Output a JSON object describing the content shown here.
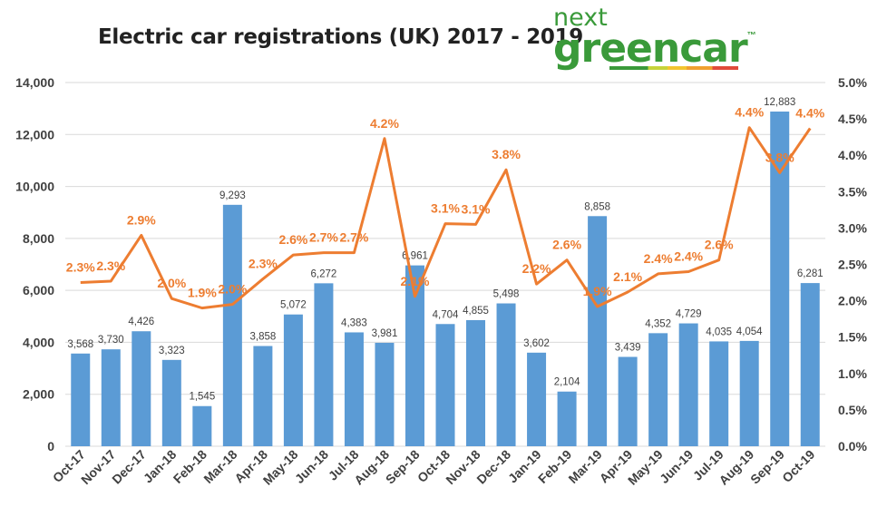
{
  "chart_data": {
    "type": "bar+line",
    "title": "Electric car registrations (UK) 2017 - 2019",
    "categories": [
      "Oct-17",
      "Nov-17",
      "Dec-17",
      "Jan-18",
      "Feb-18",
      "Mar-18",
      "Apr-18",
      "May-18",
      "Jun-18",
      "Jul-18",
      "Aug-18",
      "Sep-18",
      "Oct-18",
      "Nov-18",
      "Dec-18",
      "Jan-19",
      "Feb-19",
      "Mar-19",
      "Apr-19",
      "May-19",
      "Jun-19",
      "Jul-19",
      "Aug-19",
      "Sep-19",
      "Oct-19"
    ],
    "series": [
      {
        "type": "bar",
        "axis": "left",
        "color": "#5b9bd5",
        "values": [
          3568,
          3730,
          4426,
          3323,
          1545,
          9293,
          3858,
          5072,
          6272,
          4383,
          3981,
          6961,
          4704,
          4855,
          5498,
          3602,
          2104,
          8858,
          3439,
          4352,
          4729,
          4035,
          4054,
          12883,
          6281
        ],
        "labels": [
          "3,568",
          "3,730",
          "4,426",
          "3,323",
          "1,545",
          "9,293",
          "3,858",
          "5,072",
          "6,272",
          "4,383",
          "3,981",
          "6,961",
          "4,704",
          "4,855",
          "5,498",
          "3,602",
          "2,104",
          "8,858",
          "3,439",
          "4,352",
          "4,729",
          "4,035",
          "4,054",
          "12,883",
          "6,281"
        ]
      },
      {
        "type": "line",
        "axis": "right",
        "color": "#ed7d31",
        "values": [
          2.25,
          2.27,
          2.9,
          2.03,
          1.9,
          1.95,
          2.3,
          2.63,
          2.66,
          2.66,
          4.23,
          2.06,
          3.06,
          3.05,
          3.8,
          2.23,
          2.56,
          1.92,
          2.12,
          2.37,
          2.4,
          2.56,
          4.38,
          3.76,
          4.37
        ],
        "labels": [
          "2.3%",
          "2.3%",
          "2.9%",
          "2.0%",
          "1.9%",
          "2.0%",
          "2.3%",
          "2.6%",
          "2.7%",
          "2.7%",
          "4.2%",
          "2.1%",
          "3.1%",
          "3.1%",
          "3.8%",
          "2.2%",
          "2.6%",
          "1.9%",
          "2.1%",
          "2.4%",
          "2.4%",
          "2.6%",
          "4.4%",
          "3.8%",
          "4.4%"
        ]
      }
    ],
    "ylim": [
      0,
      14000
    ],
    "yticks": [
      "0",
      "2,000",
      "4,000",
      "6,000",
      "8,000",
      "10,000",
      "12,000",
      "14,000"
    ],
    "y2lim": [
      0,
      5
    ],
    "y2ticks": [
      "0.0%",
      "0.5%",
      "1.0%",
      "1.5%",
      "2.0%",
      "2.5%",
      "3.0%",
      "3.5%",
      "4.0%",
      "4.5%",
      "5.0%"
    ],
    "grid": true
  },
  "logo": {
    "top": "next",
    "bottom": "greencar",
    "tm": "™"
  }
}
